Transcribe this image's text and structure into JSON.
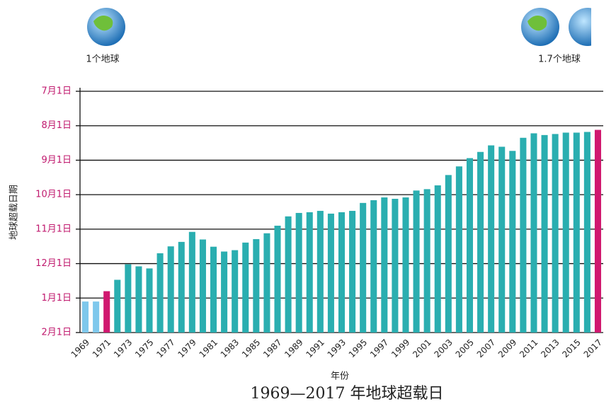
{
  "chart_data": {
    "type": "bar",
    "title": "1969—2017 年地球超载日",
    "x_label": "年份",
    "y_label": "地球超载日期",
    "annotations": [
      "1个地球",
      "1.7个地球"
    ],
    "categories": [
      "1969",
      null,
      "1971",
      null,
      "1973",
      null,
      "1975",
      null,
      "1977",
      null,
      "1979",
      null,
      "1981",
      null,
      "1983",
      null,
      "1985",
      null,
      "1987",
      null,
      "1989",
      null,
      "1991",
      null,
      "1993",
      null,
      "1995",
      null,
      "1997",
      null,
      "1999",
      null,
      "2001",
      null,
      "2003",
      null,
      "2005",
      null,
      "2007",
      null,
      "2009",
      null,
      "2011",
      null,
      "2013",
      null,
      "2015",
      null,
      "2017"
    ],
    "values": [
      0.9,
      0.9,
      1.2,
      1.53,
      1.98,
      1.92,
      1.86,
      2.3,
      2.5,
      2.63,
      2.92,
      2.7,
      2.49,
      2.35,
      2.39,
      2.61,
      2.71,
      2.88,
      3.1,
      3.37,
      3.47,
      3.49,
      3.53,
      3.45,
      3.49,
      3.53,
      3.76,
      3.84,
      3.92,
      3.88,
      3.92,
      4.12,
      4.16,
      4.27,
      4.57,
      4.82,
      5.06,
      5.24,
      5.43,
      5.39,
      5.27,
      5.65,
      5.78,
      5.73,
      5.76,
      5.8,
      5.8,
      5.82,
      5.88
    ],
    "colors": [
      "#7ec8ec",
      "#7ec8ec",
      "#d0186f",
      "#2aaeb0",
      "#2aaeb0",
      "#2aaeb0",
      "#2aaeb0",
      "#2aaeb0",
      "#2aaeb0",
      "#2aaeb0",
      "#2aaeb0",
      "#2aaeb0",
      "#2aaeb0",
      "#2aaeb0",
      "#2aaeb0",
      "#2aaeb0",
      "#2aaeb0",
      "#2aaeb0",
      "#2aaeb0",
      "#2aaeb0",
      "#2aaeb0",
      "#2aaeb0",
      "#2aaeb0",
      "#2aaeb0",
      "#2aaeb0",
      "#2aaeb0",
      "#2aaeb0",
      "#2aaeb0",
      "#2aaeb0",
      "#2aaeb0",
      "#2aaeb0",
      "#2aaeb0",
      "#2aaeb0",
      "#2aaeb0",
      "#2aaeb0",
      "#2aaeb0",
      "#2aaeb0",
      "#2aaeb0",
      "#2aaeb0",
      "#2aaeb0",
      "#2aaeb0",
      "#2aaeb0",
      "#2aaeb0",
      "#2aaeb0",
      "#2aaeb0",
      "#2aaeb0",
      "#2aaeb0",
      "#2aaeb0",
      "#d0186f"
    ],
    "ylim": [
      0,
      7
    ],
    "yticks": [
      {
        "value": 0,
        "label": "2月1日"
      },
      {
        "value": 1,
        "label": "1月1日"
      },
      {
        "value": 2,
        "label": "12月1日"
      },
      {
        "value": 3,
        "label": "11月1日"
      },
      {
        "value": 4,
        "label": "10月1日"
      },
      {
        "value": 5,
        "label": "9月1日"
      },
      {
        "value": 6,
        "label": "8月1日"
      },
      {
        "value": 7,
        "label": "7月1日"
      }
    ],
    "ytick_color": "#c0196e",
    "grid": true
  }
}
